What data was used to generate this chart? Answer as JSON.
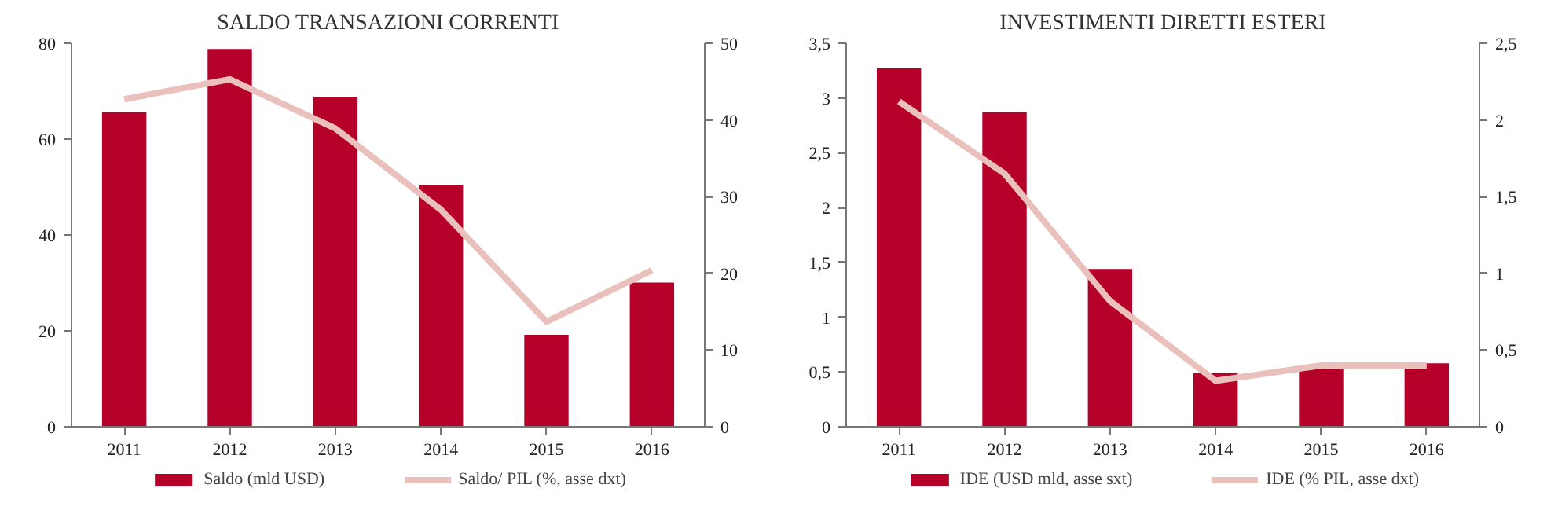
{
  "chart_data": [
    {
      "type": "bar",
      "title": "SALDO TRANSAZIONI CORRENTI",
      "categories": [
        "2011",
        "2012",
        "2013",
        "2014",
        "2015",
        "2016"
      ],
      "series": [
        {
          "name": "Saldo (mld USD)",
          "color": "#b5002a",
          "values": [
            65.6,
            78.8,
            68.7,
            50.4,
            19.2,
            30.1
          ]
        },
        {
          "name": "Saldo/ PIL (%, asse dxt)",
          "color": "#eac0bc",
          "type": "line",
          "axis": "y2",
          "values": [
            42.7,
            45.3,
            38.9,
            28.3,
            13.7,
            20.4
          ]
        }
      ],
      "ylim": [
        0,
        80
      ],
      "yticks": [
        0,
        20,
        40,
        60,
        80
      ],
      "y2lim": [
        0,
        50
      ],
      "y2ticks": [
        0,
        10,
        20,
        30,
        40,
        50
      ],
      "grid": false,
      "legend": "bottom"
    },
    {
      "type": "bar",
      "title": "INVESTIMENTI DIRETTI ESTERI",
      "categories": [
        "2011",
        "2012",
        "2013",
        "2014",
        "2015",
        "2016"
      ],
      "series": [
        {
          "name": "IDE (USD mld, asse sxt)",
          "color": "#b5002a",
          "values": [
            3.27,
            2.87,
            1.44,
            0.49,
            0.55,
            0.58
          ]
        },
        {
          "name": "IDE (% PIL, asse dxt)",
          "color": "#eac0bc",
          "type": "line",
          "axis": "y2",
          "values": [
            2.12,
            1.65,
            0.82,
            0.3,
            0.4,
            0.4
          ]
        }
      ],
      "ylim": [
        0,
        3.5
      ],
      "yticks": [
        0,
        {
          "value": 0.5,
          "label": "0,5"
        },
        1,
        {
          "value": 1.5,
          "label": "1,5"
        },
        2,
        {
          "value": 2.5,
          "label": "2,5"
        },
        3,
        {
          "value": 3.5,
          "label": "3,5"
        }
      ],
      "y2lim": [
        0,
        2.5
      ],
      "y2ticks": [
        0,
        {
          "value": 0.5,
          "label": "0,5"
        },
        1,
        {
          "value": 1.5,
          "label": "1,5"
        },
        2,
        {
          "value": 2.5,
          "label": "2,5"
        }
      ],
      "grid": false,
      "legend": "bottom"
    }
  ]
}
